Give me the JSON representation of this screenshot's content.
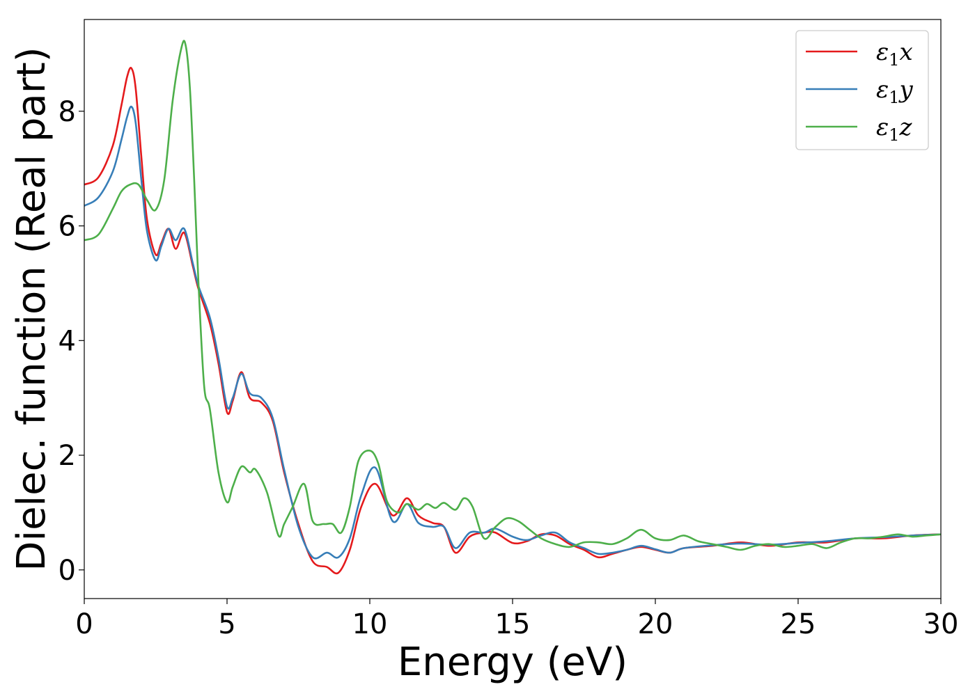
{
  "chart_data": {
    "type": "line",
    "title": "",
    "xlabel": "Energy (eV)",
    "ylabel": "Dielec. function (Real part)",
    "xlim": [
      0,
      30
    ],
    "ylim": [
      -0.5,
      9.6
    ],
    "xticks": [
      0,
      5,
      10,
      15,
      20,
      25,
      30
    ],
    "yticks": [
      0,
      2,
      4,
      6,
      8
    ],
    "grid": false,
    "legend_position": "top-right",
    "series": [
      {
        "name": "ε1x",
        "legend_base": "ε",
        "legend_sub": "1",
        "legend_axis": "x",
        "color": "#e41a1c",
        "x": [
          0,
          0.5,
          1.0,
          1.3,
          1.5,
          1.65,
          1.8,
          2.0,
          2.2,
          2.5,
          2.7,
          2.95,
          3.2,
          3.5,
          3.8,
          4.0,
          4.4,
          4.7,
          5.0,
          5.2,
          5.5,
          5.8,
          6.2,
          6.6,
          7.0,
          7.5,
          8.0,
          8.5,
          8.9,
          9.3,
          9.7,
          10.2,
          10.8,
          11.3,
          11.7,
          12.2,
          12.6,
          13.0,
          13.5,
          14.0,
          14.4,
          15.0,
          15.5,
          16.0,
          16.5,
          17.0,
          17.5,
          18.0,
          18.5,
          19.0,
          19.5,
          20.0,
          20.5,
          21.0,
          22.0,
          23.0,
          24.0,
          25.0,
          26.0,
          27.0,
          28.0,
          29.0,
          30.0
        ],
        "y": [
          6.72,
          6.85,
          7.4,
          8.1,
          8.6,
          8.75,
          8.4,
          7.2,
          6.1,
          5.5,
          5.7,
          5.95,
          5.6,
          5.88,
          5.3,
          4.9,
          4.3,
          3.6,
          2.75,
          2.95,
          3.45,
          3.0,
          2.92,
          2.6,
          1.7,
          0.8,
          0.15,
          0.05,
          -0.05,
          0.35,
          1.1,
          1.5,
          0.95,
          1.25,
          0.95,
          0.82,
          0.75,
          0.3,
          0.58,
          0.65,
          0.65,
          0.47,
          0.5,
          0.62,
          0.6,
          0.45,
          0.35,
          0.22,
          0.28,
          0.35,
          0.4,
          0.35,
          0.3,
          0.38,
          0.42,
          0.48,
          0.42,
          0.48,
          0.48,
          0.55,
          0.55,
          0.6,
          0.62
        ]
      },
      {
        "name": "ε1y",
        "legend_base": "ε",
        "legend_sub": "1",
        "legend_axis": "y",
        "color": "#377eb8",
        "x": [
          0,
          0.5,
          1.0,
          1.3,
          1.5,
          1.65,
          1.8,
          2.0,
          2.2,
          2.5,
          2.7,
          2.95,
          3.2,
          3.5,
          3.8,
          4.0,
          4.4,
          4.7,
          5.0,
          5.2,
          5.5,
          5.8,
          6.2,
          6.6,
          7.0,
          7.5,
          8.0,
          8.5,
          8.9,
          9.3,
          9.7,
          10.2,
          10.8,
          11.3,
          11.7,
          12.2,
          12.6,
          13.0,
          13.5,
          14.0,
          14.4,
          15.0,
          15.5,
          16.0,
          16.5,
          17.0,
          17.5,
          18.0,
          18.5,
          19.0,
          19.5,
          20.0,
          20.5,
          21.0,
          22.0,
          23.0,
          24.0,
          25.0,
          26.0,
          27.0,
          28.0,
          29.0,
          30.0
        ],
        "y": [
          6.35,
          6.5,
          6.95,
          7.5,
          7.9,
          8.08,
          7.8,
          6.8,
          5.9,
          5.4,
          5.65,
          5.95,
          5.75,
          5.95,
          5.35,
          4.95,
          4.4,
          3.7,
          2.85,
          3.0,
          3.42,
          3.08,
          3.0,
          2.65,
          1.75,
          0.75,
          0.22,
          0.3,
          0.22,
          0.55,
          1.3,
          1.78,
          0.85,
          1.15,
          0.82,
          0.75,
          0.75,
          0.38,
          0.65,
          0.65,
          0.72,
          0.58,
          0.52,
          0.6,
          0.65,
          0.48,
          0.38,
          0.28,
          0.3,
          0.35,
          0.42,
          0.36,
          0.3,
          0.38,
          0.43,
          0.46,
          0.44,
          0.47,
          0.5,
          0.55,
          0.57,
          0.6,
          0.62
        ]
      },
      {
        "name": "ε1z",
        "legend_base": "ε",
        "legend_sub": "1",
        "legend_axis": "z",
        "color": "#4daf4a",
        "x": [
          0,
          0.5,
          1.0,
          1.3,
          1.6,
          1.9,
          2.2,
          2.5,
          2.8,
          3.1,
          3.4,
          3.55,
          3.7,
          3.85,
          4.0,
          4.2,
          4.4,
          4.7,
          5.0,
          5.2,
          5.5,
          5.8,
          6.0,
          6.4,
          6.8,
          7.0,
          7.3,
          7.7,
          8.0,
          8.4,
          8.7,
          9.0,
          9.3,
          9.6,
          10.0,
          10.3,
          10.6,
          11.0,
          11.3,
          11.7,
          12.0,
          12.3,
          12.6,
          13.0,
          13.3,
          13.6,
          14.0,
          14.4,
          14.8,
          15.2,
          15.6,
          16.0,
          16.5,
          17.0,
          17.5,
          18.0,
          18.5,
          19.0,
          19.5,
          20.0,
          20.5,
          21.0,
          21.5,
          22.0,
          22.5,
          23.0,
          23.5,
          24.0,
          24.5,
          25.0,
          25.5,
          26.0,
          26.5,
          27.0,
          27.5,
          28.0,
          28.5,
          29.0,
          29.5,
          30.0
        ],
        "y": [
          5.75,
          5.85,
          6.3,
          6.6,
          6.72,
          6.72,
          6.45,
          6.28,
          6.8,
          8.2,
          9.1,
          9.15,
          8.4,
          6.8,
          5.0,
          3.2,
          2.8,
          1.7,
          1.18,
          1.45,
          1.8,
          1.7,
          1.75,
          1.35,
          0.6,
          0.8,
          1.1,
          1.5,
          0.85,
          0.8,
          0.8,
          0.65,
          1.1,
          1.9,
          2.08,
          1.85,
          1.2,
          1.0,
          1.15,
          1.05,
          1.15,
          1.08,
          1.17,
          1.05,
          1.25,
          1.1,
          0.55,
          0.75,
          0.9,
          0.85,
          0.7,
          0.55,
          0.45,
          0.4,
          0.48,
          0.48,
          0.45,
          0.55,
          0.7,
          0.55,
          0.52,
          0.6,
          0.5,
          0.45,
          0.4,
          0.35,
          0.42,
          0.45,
          0.4,
          0.42,
          0.45,
          0.38,
          0.48,
          0.55,
          0.55,
          0.58,
          0.62,
          0.58,
          0.6,
          0.62
        ]
      }
    ]
  }
}
